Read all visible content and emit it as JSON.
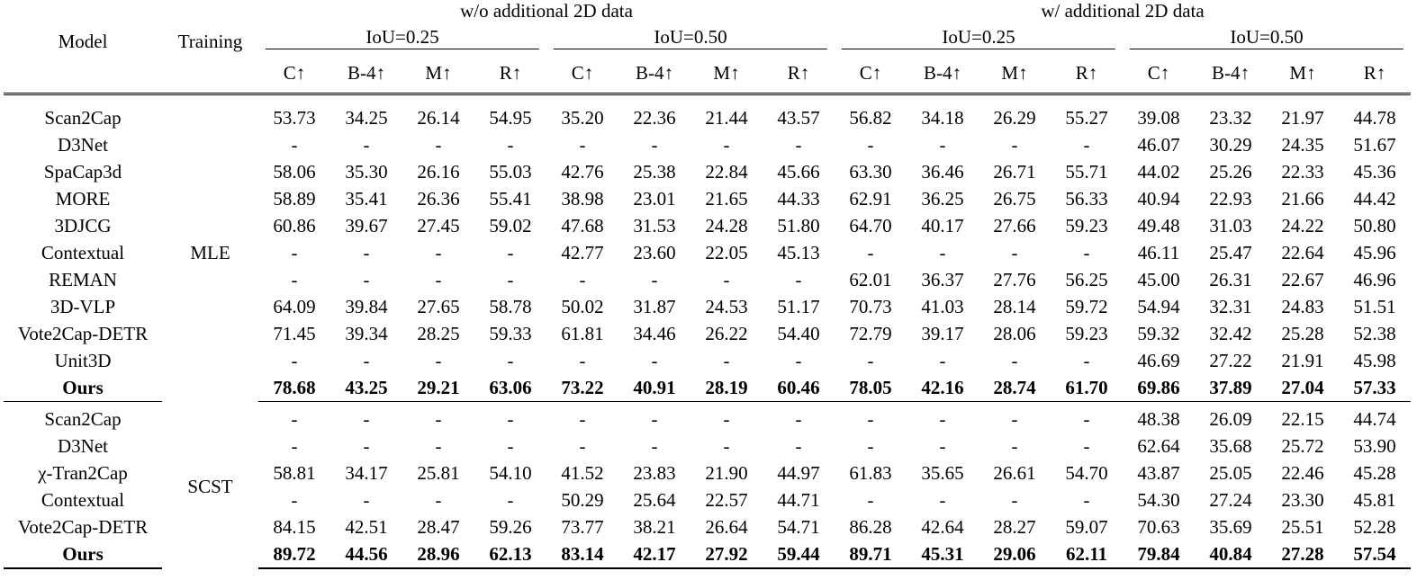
{
  "header": {
    "model": "Model",
    "training": "Training",
    "group_wo": "w/o additional 2D data",
    "group_w": "w/ additional 2D data",
    "iou25": "IoU=0.25",
    "iou50": "IoU=0.50",
    "metrics": [
      "C↑",
      "B-4↑",
      "M↑",
      "R↑"
    ]
  },
  "sections": [
    {
      "training": "MLE",
      "rows": [
        {
          "model": "Scan2Cap",
          "bold": false,
          "values": [
            "53.73",
            "34.25",
            "26.14",
            "54.95",
            "35.20",
            "22.36",
            "21.44",
            "43.57",
            "56.82",
            "34.18",
            "26.29",
            "55.27",
            "39.08",
            "23.32",
            "21.97",
            "44.78"
          ]
        },
        {
          "model": "D3Net",
          "bold": false,
          "values": [
            "-",
            "-",
            "-",
            "-",
            "-",
            "-",
            "-",
            "-",
            "-",
            "-",
            "-",
            "-",
            "46.07",
            "30.29",
            "24.35",
            "51.67"
          ]
        },
        {
          "model": "SpaCap3d",
          "bold": false,
          "values": [
            "58.06",
            "35.30",
            "26.16",
            "55.03",
            "42.76",
            "25.38",
            "22.84",
            "45.66",
            "63.30",
            "36.46",
            "26.71",
            "55.71",
            "44.02",
            "25.26",
            "22.33",
            "45.36"
          ]
        },
        {
          "model": "MORE",
          "bold": false,
          "values": [
            "58.89",
            "35.41",
            "26.36",
            "55.41",
            "38.98",
            "23.01",
            "21.65",
            "44.33",
            "62.91",
            "36.25",
            "26.75",
            "56.33",
            "40.94",
            "22.93",
            "21.66",
            "44.42"
          ]
        },
        {
          "model": "3DJCG",
          "bold": false,
          "values": [
            "60.86",
            "39.67",
            "27.45",
            "59.02",
            "47.68",
            "31.53",
            "24.28",
            "51.80",
            "64.70",
            "40.17",
            "27.66",
            "59.23",
            "49.48",
            "31.03",
            "24.22",
            "50.80"
          ]
        },
        {
          "model": "Contextual",
          "bold": false,
          "values": [
            "-",
            "-",
            "-",
            "-",
            "42.77",
            "23.60",
            "22.05",
            "45.13",
            "-",
            "-",
            "-",
            "-",
            "46.11",
            "25.47",
            "22.64",
            "45.96"
          ]
        },
        {
          "model": "REMAN",
          "bold": false,
          "values": [
            "-",
            "-",
            "-",
            "-",
            "-",
            "-",
            "-",
            "-",
            "62.01",
            "36.37",
            "27.76",
            "56.25",
            "45.00",
            "26.31",
            "22.67",
            "46.96"
          ]
        },
        {
          "model": "3D-VLP",
          "bold": false,
          "values": [
            "64.09",
            "39.84",
            "27.65",
            "58.78",
            "50.02",
            "31.87",
            "24.53",
            "51.17",
            "70.73",
            "41.03",
            "28.14",
            "59.72",
            "54.94",
            "32.31",
            "24.83",
            "51.51"
          ]
        },
        {
          "model": "Vote2Cap-DETR",
          "bold": false,
          "values": [
            "71.45",
            "39.34",
            "28.25",
            "59.33",
            "61.81",
            "34.46",
            "26.22",
            "54.40",
            "72.79",
            "39.17",
            "28.06",
            "59.23",
            "59.32",
            "32.42",
            "25.28",
            "52.38"
          ]
        },
        {
          "model": "Unit3D",
          "bold": false,
          "values": [
            "-",
            "-",
            "-",
            "-",
            "-",
            "-",
            "-",
            "-",
            "-",
            "-",
            "-",
            "-",
            "46.69",
            "27.22",
            "21.91",
            "45.98"
          ]
        },
        {
          "model": "Ours",
          "bold": true,
          "values": [
            "78.68",
            "43.25",
            "29.21",
            "63.06",
            "73.22",
            "40.91",
            "28.19",
            "60.46",
            "78.05",
            "42.16",
            "28.74",
            "61.70",
            "69.86",
            "37.89",
            "27.04",
            "57.33"
          ]
        }
      ]
    },
    {
      "training": "SCST",
      "rows": [
        {
          "model": "Scan2Cap",
          "bold": false,
          "values": [
            "-",
            "-",
            "-",
            "-",
            "-",
            "-",
            "-",
            "-",
            "-",
            "-",
            "-",
            "-",
            "48.38",
            "26.09",
            "22.15",
            "44.74"
          ]
        },
        {
          "model": "D3Net",
          "bold": false,
          "values": [
            "-",
            "-",
            "-",
            "-",
            "-",
            "-",
            "-",
            "-",
            "-",
            "-",
            "-",
            "-",
            "62.64",
            "35.68",
            "25.72",
            "53.90"
          ]
        },
        {
          "model": "χ-Tran2Cap",
          "bold": false,
          "values": [
            "58.81",
            "34.17",
            "25.81",
            "54.10",
            "41.52",
            "23.83",
            "21.90",
            "44.97",
            "61.83",
            "35.65",
            "26.61",
            "54.70",
            "43.87",
            "25.05",
            "22.46",
            "45.28"
          ]
        },
        {
          "model": "Contextual",
          "bold": false,
          "values": [
            "-",
            "-",
            "-",
            "-",
            "50.29",
            "25.64",
            "22.57",
            "44.71",
            "-",
            "-",
            "-",
            "-",
            "54.30",
            "27.24",
            "23.30",
            "45.81"
          ]
        },
        {
          "model": "Vote2Cap-DETR",
          "bold": false,
          "values": [
            "84.15",
            "42.51",
            "28.47",
            "59.26",
            "73.77",
            "38.21",
            "26.64",
            "54.71",
            "86.28",
            "42.64",
            "28.27",
            "59.07",
            "70.63",
            "35.69",
            "25.51",
            "52.28"
          ]
        },
        {
          "model": "Ours",
          "bold": true,
          "values": [
            "89.72",
            "44.56",
            "28.96",
            "62.13",
            "83.14",
            "42.17",
            "27.92",
            "59.44",
            "89.71",
            "45.31",
            "29.06",
            "62.11",
            "79.84",
            "40.84",
            "27.28",
            "57.54"
          ]
        }
      ]
    }
  ]
}
